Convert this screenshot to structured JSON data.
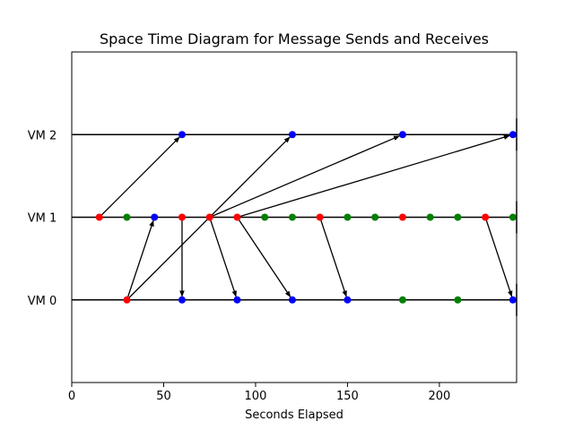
{
  "chart_data": {
    "type": "scatter",
    "title": "Space Time Diagram for Message Sends and Receives",
    "xlabel": "Seconds Elapsed",
    "ylabel": "",
    "xlim": [
      0,
      242
    ],
    "ylim": [
      -1,
      3
    ],
    "grid": false,
    "x_ticks": [
      0,
      50,
      100,
      150,
      200
    ],
    "y_ticks": [
      {
        "value": 0,
        "label": "VM 0"
      },
      {
        "value": 1,
        "label": "VM 1"
      },
      {
        "value": 2,
        "label": "VM 2"
      }
    ],
    "colors": {
      "send": "#ff0000",
      "receive": "#0000ff",
      "internal": "#008000",
      "line": "#000000"
    },
    "timelines": [
      {
        "vm": 0,
        "end": 242
      },
      {
        "vm": 1,
        "end": 242
      },
      {
        "vm": 2,
        "end": 242
      }
    ],
    "events": {
      "VM 0": [
        {
          "t": 30,
          "kind": "send"
        },
        {
          "t": 60,
          "kind": "receive"
        },
        {
          "t": 90,
          "kind": "receive"
        },
        {
          "t": 120,
          "kind": "receive"
        },
        {
          "t": 150,
          "kind": "receive"
        },
        {
          "t": 180,
          "kind": "internal"
        },
        {
          "t": 210,
          "kind": "internal"
        },
        {
          "t": 240,
          "kind": "receive"
        }
      ],
      "VM 1": [
        {
          "t": 15,
          "kind": "send"
        },
        {
          "t": 30,
          "kind": "internal"
        },
        {
          "t": 45,
          "kind": "receive"
        },
        {
          "t": 60,
          "kind": "send"
        },
        {
          "t": 75,
          "kind": "send"
        },
        {
          "t": 90,
          "kind": "send"
        },
        {
          "t": 105,
          "kind": "internal"
        },
        {
          "t": 120,
          "kind": "internal"
        },
        {
          "t": 135,
          "kind": "send"
        },
        {
          "t": 150,
          "kind": "internal"
        },
        {
          "t": 165,
          "kind": "internal"
        },
        {
          "t": 180,
          "kind": "send"
        },
        {
          "t": 195,
          "kind": "internal"
        },
        {
          "t": 210,
          "kind": "internal"
        },
        {
          "t": 225,
          "kind": "send"
        },
        {
          "t": 240,
          "kind": "internal"
        }
      ],
      "VM 2": [
        {
          "t": 60,
          "kind": "receive"
        },
        {
          "t": 120,
          "kind": "receive"
        },
        {
          "t": 180,
          "kind": "receive"
        },
        {
          "t": 240,
          "kind": "receive"
        }
      ]
    },
    "messages": [
      {
        "from_vm": 1,
        "from_t": 15,
        "to_vm": 2,
        "to_t": 60
      },
      {
        "from_vm": 0,
        "from_t": 30,
        "to_vm": 1,
        "to_t": 45
      },
      {
        "from_vm": 0,
        "from_t": 30,
        "to_vm": 2,
        "to_t": 120
      },
      {
        "from_vm": 1,
        "from_t": 60,
        "to_vm": 0,
        "to_t": 60
      },
      {
        "from_vm": 1,
        "from_t": 75,
        "to_vm": 0,
        "to_t": 90
      },
      {
        "from_vm": 1,
        "from_t": 75,
        "to_vm": 2,
        "to_t": 180
      },
      {
        "from_vm": 1,
        "from_t": 90,
        "to_vm": 0,
        "to_t": 120
      },
      {
        "from_vm": 1,
        "from_t": 90,
        "to_vm": 2,
        "to_t": 240
      },
      {
        "from_vm": 1,
        "from_t": 135,
        "to_vm": 0,
        "to_t": 150
      },
      {
        "from_vm": 1,
        "from_t": 225,
        "to_vm": 0,
        "to_t": 240
      }
    ]
  }
}
